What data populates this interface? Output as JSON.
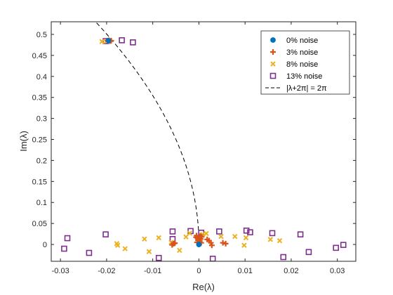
{
  "chart_data": {
    "type": "scatter",
    "xlabel": "Re(λ)",
    "ylabel": "Im(λ)",
    "xlim": [
      -0.032,
      0.034
    ],
    "ylim": [
      -0.04,
      0.53
    ],
    "xticks": [
      -0.03,
      -0.02,
      -0.01,
      0,
      0.01,
      0.02,
      0.03
    ],
    "xtick_labels": [
      "-0.03",
      "-0.02",
      "-0.01",
      "0",
      "0.01",
      "0.02",
      "0.03"
    ],
    "yticks": [
      0,
      0.05,
      0.1,
      0.15,
      0.2,
      0.25,
      0.3,
      0.35,
      0.4,
      0.45,
      0.5
    ],
    "ytick_labels": [
      "0",
      "0.05",
      "0.1",
      "0.15",
      "0.2",
      "0.25",
      "0.3",
      "0.35",
      "0.4",
      "0.45",
      "0.5"
    ],
    "grid": false,
    "legend_position": "top-right",
    "series": [
      {
        "name": "0% noise",
        "marker": "circle",
        "color": "#0072BD",
        "points": [
          [
            0.0,
            0.0
          ],
          [
            -0.0196,
            0.485
          ]
        ]
      },
      {
        "name": "3% noise",
        "marker": "plus",
        "color": "#D95319",
        "points": [
          [
            -0.0195,
            0.486
          ],
          [
            -0.0198,
            0.485
          ],
          [
            -0.0193,
            0.484
          ],
          [
            -0.019,
            0.485
          ],
          [
            -0.0055,
            0.002
          ],
          [
            -0.0058,
            -0.001
          ],
          [
            -0.0052,
            0.003
          ],
          [
            -0.0005,
            0.021
          ],
          [
            0.0003,
            0.02
          ],
          [
            -0.0006,
            0.017
          ],
          [
            0.0006,
            0.018
          ],
          [
            -0.0003,
            0.015
          ],
          [
            0.0004,
            0.013
          ],
          [
            -0.0002,
            0.01
          ],
          [
            0.0002,
            0.008
          ],
          [
            -0.0004,
            0.005
          ],
          [
            0.0005,
            0.004
          ],
          [
            0.0018,
            0.012
          ],
          [
            0.0022,
            0.009
          ],
          [
            0.0026,
            0.004
          ],
          [
            0.0028,
            -0.002
          ],
          [
            0.0052,
            0.004
          ],
          [
            0.0058,
            0.002
          ]
        ]
      },
      {
        "name": "8% noise",
        "marker": "x",
        "color": "#EDB120",
        "points": [
          [
            -0.021,
            0.483
          ],
          [
            -0.02,
            0.484
          ],
          [
            -0.0178,
            0.002
          ],
          [
            -0.0176,
            -0.002
          ],
          [
            -0.016,
            -0.01
          ],
          [
            -0.0118,
            0.013
          ],
          [
            -0.0108,
            -0.017
          ],
          [
            -0.0087,
            0.016
          ],
          [
            -0.006,
            0.005
          ],
          [
            -0.0042,
            -0.014
          ],
          [
            -0.0028,
            0.018
          ],
          [
            -0.002,
            0.027
          ],
          [
            0.0008,
            0.024
          ],
          [
            0.0016,
            0.026
          ],
          [
            0.0048,
            0.019
          ],
          [
            0.0078,
            0.019
          ],
          [
            0.0098,
            -0.002
          ],
          [
            0.0102,
            0.016
          ],
          [
            0.0155,
            0.012
          ],
          [
            0.0175,
            0.009
          ]
        ]
      },
      {
        "name": "13% noise",
        "marker": "square",
        "color": "#7E2F8E",
        "points": [
          [
            -0.0202,
            0.484
          ],
          [
            -0.0167,
            0.486
          ],
          [
            -0.0143,
            0.481
          ],
          [
            -0.0285,
            0.015
          ],
          [
            -0.0292,
            -0.01
          ],
          [
            -0.0238,
            -0.02
          ],
          [
            -0.0202,
            0.024
          ],
          [
            -0.0087,
            -0.032
          ],
          [
            -0.0057,
            0.031
          ],
          [
            -0.0057,
            0.013
          ],
          [
            -0.0018,
            0.032
          ],
          [
            0.0005,
            0.028
          ],
          [
            0.003,
            -0.034
          ],
          [
            0.0044,
            0.031
          ],
          [
            0.0103,
            0.033
          ],
          [
            0.0111,
            0.029
          ],
          [
            0.0159,
            0.027
          ],
          [
            0.0183,
            -0.03
          ],
          [
            0.022,
            0.024
          ],
          [
            0.0238,
            -0.018
          ],
          [
            0.0297,
            -0.008
          ],
          [
            0.0313,
            -0.001
          ]
        ]
      },
      {
        "name": "|λ+2π| = 2π",
        "marker": "none",
        "color": "#000000",
        "line_style": "dashed"
      }
    ]
  }
}
